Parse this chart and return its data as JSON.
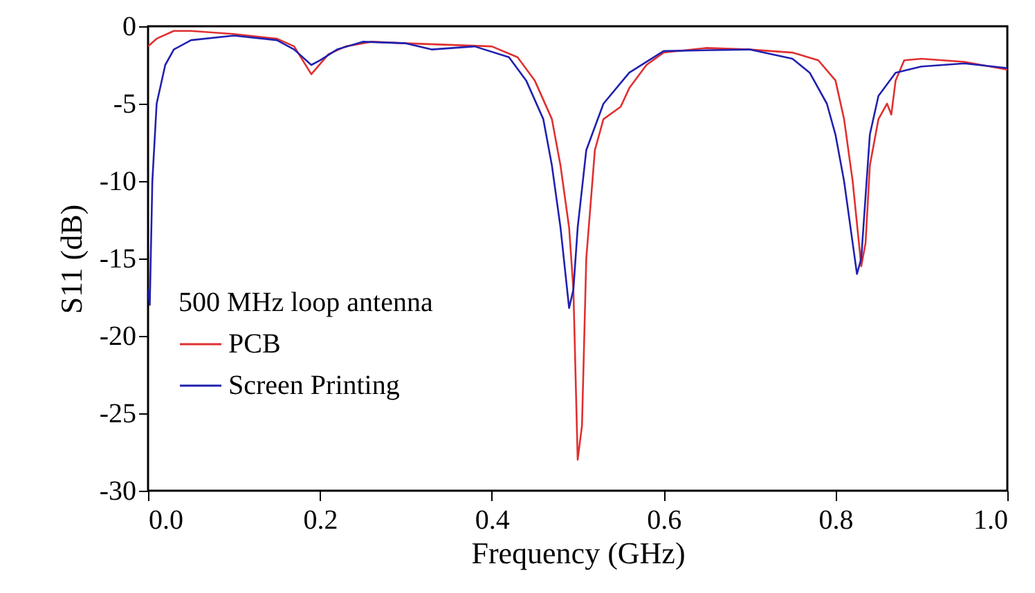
{
  "chart_data": {
    "type": "line",
    "xlabel": "Frequency (GHz)",
    "ylabel": "S11 (dB)",
    "legend_title": "500 MHz loop antenna",
    "legend": "bottom left",
    "grid": false,
    "marker": "none",
    "line_style": "solid",
    "xlim": [
      0,
      1
    ],
    "ylim": [
      -30,
      0
    ],
    "xticks": [
      {
        "value": 0,
        "label": "0.0"
      },
      0.2,
      0.4,
      0.6,
      0.8,
      {
        "value": 1,
        "label": "1.0"
      }
    ],
    "yticks": [
      -30,
      -25,
      -20,
      -15,
      -10,
      -5,
      0
    ],
    "series": [
      {
        "name": "PCB",
        "color": "#e03030",
        "x": [
          0,
          0.01,
          0.03,
          0.05,
          0.1,
          0.15,
          0.17,
          0.19,
          0.21,
          0.23,
          0.26,
          0.3,
          0.35,
          0.4,
          0.43,
          0.45,
          0.47,
          0.48,
          0.49,
          0.495,
          0.5,
          0.505,
          0.51,
          0.52,
          0.53,
          0.55,
          0.56,
          0.58,
          0.6,
          0.65,
          0.7,
          0.75,
          0.78,
          0.8,
          0.81,
          0.82,
          0.83,
          0.835,
          0.84,
          0.85,
          0.86,
          0.865,
          0.87,
          0.88,
          0.9,
          0.95,
          1.0
        ],
        "values": [
          -1.3,
          -0.8,
          -0.3,
          -0.3,
          -0.5,
          -0.8,
          -1.3,
          -3.1,
          -1.8,
          -1.3,
          -1.0,
          -1.1,
          -1.2,
          -1.3,
          -2.0,
          -3.5,
          -6,
          -9,
          -13,
          -17,
          -28,
          -25.8,
          -15,
          -8,
          -6,
          -5.2,
          -4,
          -2.5,
          -1.7,
          -1.4,
          -1.5,
          -1.7,
          -2.2,
          -3.5,
          -6,
          -10,
          -15.5,
          -14,
          -9,
          -6,
          -5,
          -5.7,
          -3.5,
          -2.2,
          -2.1,
          -2.3,
          -2.8
        ]
      },
      {
        "name": "Screen Printing",
        "color": "#2020b0",
        "x": [
          0,
          0.002,
          0.005,
          0.01,
          0.02,
          0.03,
          0.05,
          0.1,
          0.15,
          0.17,
          0.19,
          0.2,
          0.22,
          0.25,
          0.3,
          0.33,
          0.38,
          0.42,
          0.44,
          0.46,
          0.47,
          0.48,
          0.49,
          0.495,
          0.5,
          0.51,
          0.53,
          0.56,
          0.6,
          0.7,
          0.75,
          0.77,
          0.79,
          0.8,
          0.81,
          0.82,
          0.825,
          0.83,
          0.835,
          0.84,
          0.85,
          0.87,
          0.9,
          0.95,
          1.0
        ],
        "values": [
          -17,
          -18,
          -10,
          -5,
          -2.5,
          -1.5,
          -0.9,
          -0.6,
          -0.9,
          -1.5,
          -2.5,
          -2.2,
          -1.5,
          -1.0,
          -1.1,
          -1.5,
          -1.3,
          -2,
          -3.5,
          -6,
          -9,
          -13,
          -18.2,
          -17,
          -13,
          -8,
          -5,
          -3,
          -1.6,
          -1.5,
          -2.1,
          -3,
          -5,
          -7,
          -10,
          -14,
          -16,
          -15,
          -11,
          -7,
          -4.5,
          -3,
          -2.6,
          -2.4,
          -2.7
        ]
      }
    ]
  }
}
